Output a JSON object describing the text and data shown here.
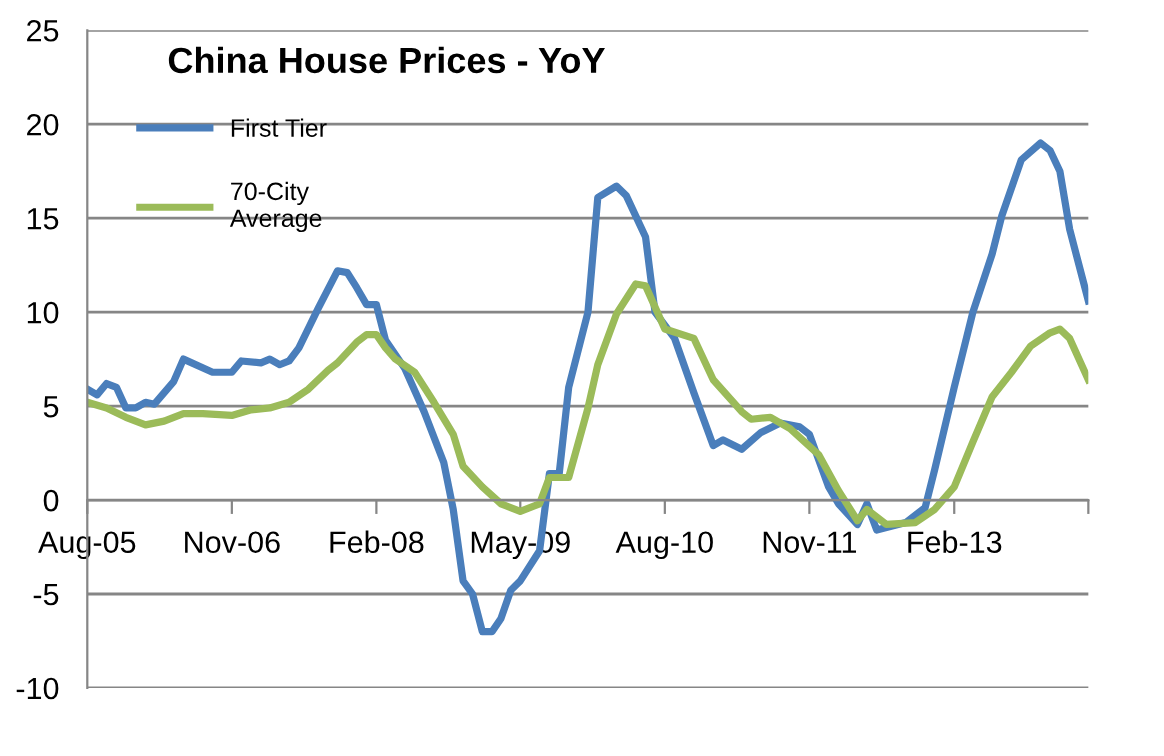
{
  "chart_data": {
    "type": "line",
    "title": "China House Prices - YoY",
    "series": [
      {
        "name": "First Tier",
        "color": "#4a7ebb",
        "x": [
          "2005-08",
          "2005-09",
          "2005-10",
          "2005-11",
          "2005-12",
          "2006-01",
          "2006-02",
          "2006-03",
          "2006-05",
          "2006-06",
          "2006-09",
          "2006-11",
          "2006-12",
          "2007-02",
          "2007-03",
          "2007-04",
          "2007-05",
          "2007-06",
          "2007-08",
          "2007-10",
          "2007-11",
          "2007-12",
          "2008-01",
          "2008-02",
          "2008-03",
          "2008-05",
          "2008-07",
          "2008-09",
          "2008-10",
          "2008-11",
          "2008-12",
          "2009-01",
          "2009-02",
          "2009-03",
          "2009-04",
          "2009-05",
          "2009-07",
          "2009-08",
          "2009-09",
          "2009-10",
          "2009-12",
          "2010-01",
          "2010-03",
          "2010-04",
          "2010-06",
          "2010-07",
          "2010-09",
          "2010-11",
          "2011-01",
          "2011-02",
          "2011-04",
          "2011-06",
          "2011-08",
          "2011-10",
          "2011-11",
          "2012-01",
          "2012-02",
          "2012-04",
          "2012-05",
          "2012-06",
          "2012-09",
          "2012-11",
          "2012-12",
          "2013-02",
          "2013-04",
          "2013-06",
          "2013-07",
          "2013-09",
          "2013-11",
          "2013-12",
          "2014-01",
          "2014-02",
          "2014-04"
        ],
        "values": [
          5.9,
          5.6,
          6.2,
          6.0,
          4.9,
          4.9,
          5.2,
          5.1,
          6.3,
          7.5,
          6.8,
          6.8,
          7.4,
          7.3,
          7.5,
          7.2,
          7.4,
          8.1,
          10.2,
          12.2,
          12.1,
          11.3,
          10.4,
          10.4,
          8.5,
          7.0,
          4.7,
          2.0,
          -0.5,
          -4.3,
          -5.0,
          -7.0,
          -7.0,
          -6.3,
          -4.8,
          -4.3,
          -2.7,
          1.4,
          1.4,
          6.0,
          10.0,
          16.1,
          16.7,
          16.2,
          14.0,
          10.0,
          8.6,
          5.7,
          2.9,
          3.2,
          2.7,
          3.6,
          4.1,
          3.9,
          3.5,
          0.7,
          -0.2,
          -1.3,
          -0.2,
          -1.6,
          -1.2,
          -0.4,
          1.6,
          6.0,
          10.0,
          13.1,
          15.1,
          18.1,
          19.0,
          18.6,
          17.5,
          14.4,
          10.6
        ]
      },
      {
        "name": "70-City\nAverage",
        "color": "#9bbb59",
        "x": [
          "2005-08",
          "2005-10",
          "2005-12",
          "2006-02",
          "2006-04",
          "2006-06",
          "2006-08",
          "2006-11",
          "2007-01",
          "2007-03",
          "2007-05",
          "2007-07",
          "2007-09",
          "2007-10",
          "2007-12",
          "2008-01",
          "2008-02",
          "2008-03",
          "2008-04",
          "2008-06",
          "2008-08",
          "2008-10",
          "2008-11",
          "2009-01",
          "2009-03",
          "2009-05",
          "2009-07",
          "2009-08",
          "2009-10",
          "2009-12",
          "2010-01",
          "2010-03",
          "2010-05",
          "2010-06",
          "2010-08",
          "2010-11",
          "2011-01",
          "2011-04",
          "2011-05",
          "2011-07",
          "2011-09",
          "2011-12",
          "2012-02",
          "2012-04",
          "2012-05",
          "2012-07",
          "2012-10",
          "2012-12",
          "2013-02",
          "2013-04",
          "2013-06",
          "2013-08",
          "2013-10",
          "2013-12",
          "2014-01",
          "2014-02",
          "2014-04"
        ],
        "values": [
          5.2,
          4.9,
          4.4,
          4.0,
          4.2,
          4.6,
          4.6,
          4.5,
          4.8,
          4.9,
          5.2,
          5.9,
          6.9,
          7.3,
          8.4,
          8.8,
          8.8,
          8.1,
          7.5,
          6.8,
          5.2,
          3.5,
          1.8,
          0.7,
          -0.2,
          -0.6,
          -0.2,
          1.2,
          1.2,
          4.9,
          7.2,
          9.9,
          11.5,
          11.4,
          9.1,
          8.6,
          6.4,
          4.7,
          4.3,
          4.4,
          3.8,
          2.4,
          0.5,
          -1.1,
          -0.5,
          -1.3,
          -1.2,
          -0.5,
          0.7,
          3.1,
          5.5,
          6.8,
          8.2,
          8.9,
          9.1,
          8.6,
          6.4
        ]
      }
    ],
    "xlim": [
      "2005-08",
      "2014-04"
    ],
    "xticks": [
      {
        "value": "2005-08",
        "label": "Aug-05"
      },
      {
        "value": "2006-11",
        "label": "Nov-06"
      },
      {
        "value": "2008-02",
        "label": "Feb-08"
      },
      {
        "value": "2009-05",
        "label": "May-09"
      },
      {
        "value": "2010-08",
        "label": "Aug-10"
      },
      {
        "value": "2011-11",
        "label": "Nov-11"
      },
      {
        "value": "2013-02",
        "label": "Feb-13"
      },
      {
        "value": "2014-04",
        "label": null
      }
    ],
    "ylim": [
      -10,
      25
    ],
    "yticks": [
      -10,
      -5,
      0,
      5,
      10,
      15,
      20,
      25
    ],
    "grid": "y",
    "legend": "top left",
    "marker": "none",
    "line_style": "solid"
  }
}
